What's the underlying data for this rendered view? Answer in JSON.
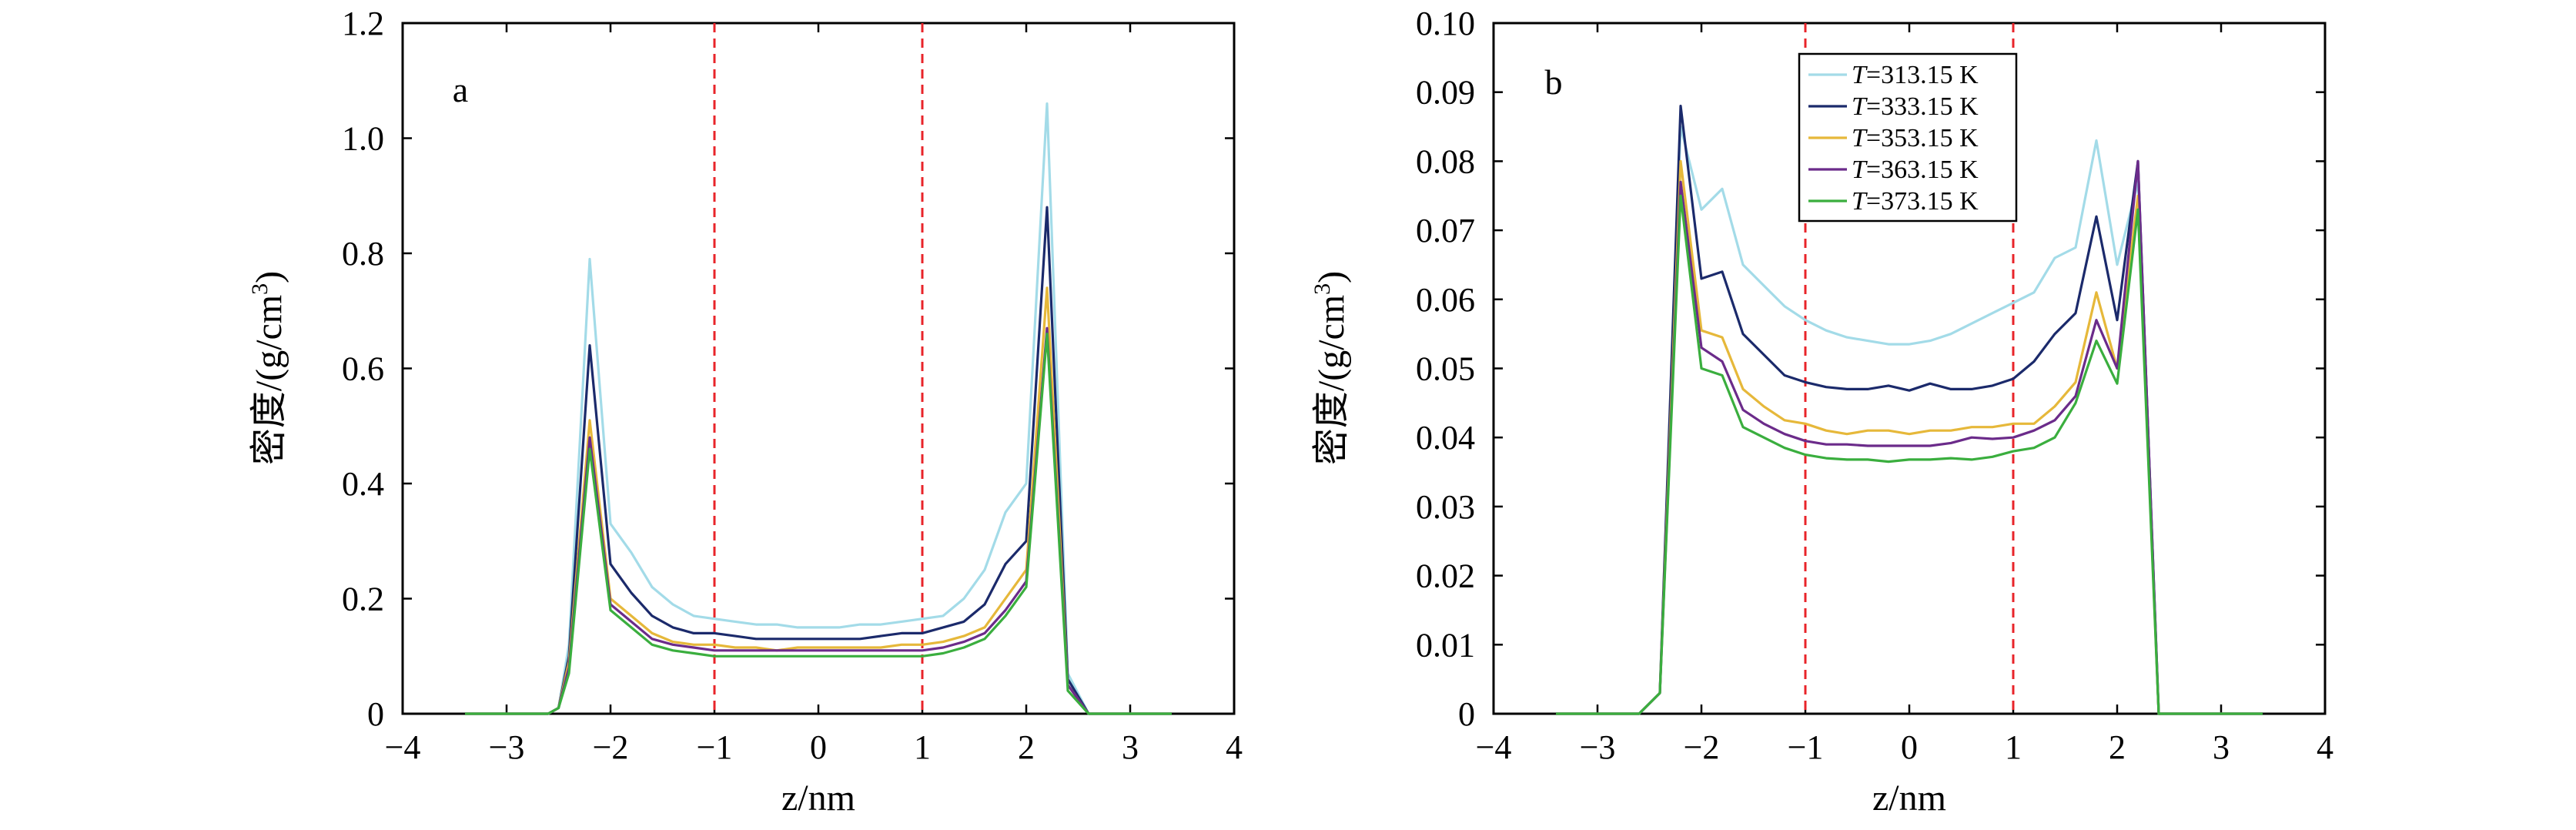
{
  "chart_data": [
    {
      "type": "line",
      "panel_label": "a",
      "xlabel": "z/nm",
      "ylabel": "密度/(g/cm³)",
      "ylabel_main": "密度/(g/cm",
      "ylabel_sup": "3",
      "ylabel_close": ")",
      "xlim": [
        -4,
        4
      ],
      "ylim": [
        0,
        1.2
      ],
      "xticks": [
        -4,
        -3,
        -2,
        -1,
        0,
        1,
        2,
        3,
        4
      ],
      "xtick_labels": [
        "−4",
        "−3",
        "−2",
        "−1",
        "0",
        "1",
        "2",
        "3",
        "4"
      ],
      "yticks": [
        0,
        0.2,
        0.4,
        0.6,
        0.8,
        1.0,
        1.2
      ],
      "ytick_labels": [
        "0",
        "0.2",
        "0.4",
        "0.6",
        "0.8",
        "1.0",
        "1.2"
      ],
      "vlines": [
        -1,
        1
      ],
      "vline_color": "#e8242a",
      "x": [
        -3.4,
        -3.2,
        -3.0,
        -2.8,
        -2.6,
        -2.5,
        -2.4,
        -2.2,
        -2.0,
        -1.8,
        -1.6,
        -1.4,
        -1.2,
        -1.0,
        -0.8,
        -0.6,
        -0.4,
        -0.2,
        0.0,
        0.2,
        0.4,
        0.6,
        0.8,
        1.0,
        1.2,
        1.4,
        1.6,
        1.8,
        2.0,
        2.2,
        2.4,
        2.6,
        2.8,
        3.0,
        3.2,
        3.4
      ],
      "series": [
        {
          "color": "#a3dbe8",
          "values": [
            0,
            0,
            0,
            0,
            0,
            0.01,
            0.12,
            0.79,
            0.33,
            0.28,
            0.22,
            0.19,
            0.17,
            0.165,
            0.16,
            0.155,
            0.155,
            0.15,
            0.15,
            0.15,
            0.155,
            0.155,
            0.16,
            0.165,
            0.17,
            0.2,
            0.25,
            0.35,
            0.4,
            1.06,
            0.07,
            0,
            0,
            0,
            0,
            0
          ]
        },
        {
          "color": "#1b2a6b",
          "values": [
            0,
            0,
            0,
            0,
            0,
            0.01,
            0.1,
            0.64,
            0.26,
            0.21,
            0.17,
            0.15,
            0.14,
            0.14,
            0.135,
            0.13,
            0.13,
            0.13,
            0.13,
            0.13,
            0.13,
            0.135,
            0.14,
            0.14,
            0.15,
            0.16,
            0.19,
            0.26,
            0.3,
            0.88,
            0.06,
            0,
            0,
            0,
            0,
            0
          ]
        },
        {
          "color": "#e6b83a",
          "values": [
            0,
            0,
            0,
            0,
            0,
            0.01,
            0.09,
            0.51,
            0.2,
            0.17,
            0.14,
            0.125,
            0.12,
            0.12,
            0.115,
            0.115,
            0.11,
            0.115,
            0.115,
            0.115,
            0.115,
            0.115,
            0.12,
            0.12,
            0.125,
            0.135,
            0.15,
            0.2,
            0.25,
            0.74,
            0.05,
            0,
            0,
            0,
            0,
            0
          ]
        },
        {
          "color": "#6b2b8a",
          "values": [
            0,
            0,
            0,
            0,
            0,
            0.01,
            0.08,
            0.48,
            0.19,
            0.16,
            0.13,
            0.12,
            0.115,
            0.11,
            0.11,
            0.11,
            0.11,
            0.11,
            0.11,
            0.11,
            0.11,
            0.11,
            0.11,
            0.11,
            0.115,
            0.125,
            0.14,
            0.18,
            0.23,
            0.67,
            0.05,
            0,
            0,
            0,
            0,
            0
          ]
        },
        {
          "color": "#3aae3e",
          "values": [
            0,
            0,
            0,
            0,
            0,
            0.01,
            0.07,
            0.46,
            0.18,
            0.15,
            0.12,
            0.11,
            0.105,
            0.1,
            0.1,
            0.1,
            0.1,
            0.1,
            0.1,
            0.1,
            0.1,
            0.1,
            0.1,
            0.1,
            0.105,
            0.115,
            0.13,
            0.17,
            0.22,
            0.66,
            0.04,
            0,
            0,
            0,
            0,
            0
          ]
        }
      ]
    },
    {
      "type": "line",
      "panel_label": "b",
      "xlabel": "z/nm",
      "ylabel": "密度/(g/cm³)",
      "ylabel_main": "密度/(g/cm",
      "ylabel_sup": "3",
      "ylabel_close": ")",
      "xlim": [
        -4,
        4
      ],
      "ylim": [
        0,
        0.1
      ],
      "xticks": [
        -4,
        -3,
        -2,
        -1,
        0,
        1,
        2,
        3,
        4
      ],
      "xtick_labels": [
        "−4",
        "−3",
        "−2",
        "−1",
        "0",
        "1",
        "2",
        "3",
        "4"
      ],
      "yticks": [
        0,
        0.01,
        0.02,
        0.03,
        0.04,
        0.05,
        0.06,
        0.07,
        0.08,
        0.09,
        0.1
      ],
      "ytick_labels": [
        "0",
        "0.01",
        "0.02",
        "0.03",
        "0.04",
        "0.05",
        "0.06",
        "0.07",
        "0.08",
        "0.09",
        "0.10"
      ],
      "vlines": [
        -1,
        1
      ],
      "vline_color": "#e8242a",
      "legend": {
        "placement": "top-center"
      },
      "x": [
        -3.4,
        -3.2,
        -3.0,
        -2.8,
        -2.6,
        -2.4,
        -2.2,
        -2.0,
        -1.8,
        -1.6,
        -1.4,
        -1.2,
        -1.0,
        -0.8,
        -0.6,
        -0.4,
        -0.2,
        0.0,
        0.2,
        0.4,
        0.6,
        0.8,
        1.0,
        1.2,
        1.4,
        1.6,
        1.8,
        2.0,
        2.2,
        2.4,
        2.6,
        2.8,
        3.0,
        3.2,
        3.4
      ],
      "series": [
        {
          "name_italic": "T",
          "name_rest": "=313.15 K",
          "color": "#a3dbe8",
          "values": [
            0,
            0,
            0,
            0,
            0,
            0.003,
            0.085,
            0.073,
            0.076,
            0.065,
            0.062,
            0.059,
            0.057,
            0.0555,
            0.0545,
            0.054,
            0.0535,
            0.0535,
            0.054,
            0.055,
            0.0565,
            0.058,
            0.0595,
            0.061,
            0.066,
            0.0675,
            0.083,
            0.065,
            0.077,
            0,
            0,
            0,
            0,
            0,
            0
          ]
        },
        {
          "name_italic": "T",
          "name_rest": "=333.15 K",
          "color": "#1b2a6b",
          "values": [
            0,
            0,
            0,
            0,
            0,
            0.003,
            0.088,
            0.063,
            0.064,
            0.055,
            0.052,
            0.049,
            0.048,
            0.0473,
            0.047,
            0.047,
            0.0475,
            0.0468,
            0.0478,
            0.047,
            0.047,
            0.0475,
            0.0485,
            0.051,
            0.055,
            0.058,
            0.072,
            0.057,
            0.08,
            0,
            0,
            0,
            0,
            0,
            0
          ]
        },
        {
          "name_italic": "T",
          "name_rest": "=353.15 K",
          "color": "#e6b83a",
          "values": [
            0,
            0,
            0,
            0,
            0,
            0.003,
            0.08,
            0.0555,
            0.0545,
            0.047,
            0.0445,
            0.0425,
            0.042,
            0.041,
            0.0405,
            0.041,
            0.041,
            0.0405,
            0.041,
            0.041,
            0.0415,
            0.0415,
            0.042,
            0.042,
            0.0445,
            0.048,
            0.061,
            0.05,
            0.075,
            0,
            0,
            0,
            0,
            0,
            0
          ]
        },
        {
          "name_italic": "T",
          "name_rest": "=363.15 K",
          "color": "#6b2b8a",
          "values": [
            0,
            0,
            0,
            0,
            0,
            0.003,
            0.077,
            0.053,
            0.051,
            0.044,
            0.042,
            0.0405,
            0.0395,
            0.039,
            0.039,
            0.0388,
            0.0388,
            0.0388,
            0.0388,
            0.0392,
            0.04,
            0.0398,
            0.04,
            0.041,
            0.0425,
            0.046,
            0.057,
            0.05,
            0.08,
            0,
            0,
            0,
            0,
            0,
            0
          ]
        },
        {
          "name_italic": "T",
          "name_rest": "=373.15 K",
          "color": "#3aae3e",
          "values": [
            0,
            0,
            0,
            0,
            0,
            0.003,
            0.075,
            0.05,
            0.049,
            0.0415,
            0.04,
            0.0385,
            0.0375,
            0.037,
            0.0368,
            0.0368,
            0.0365,
            0.0368,
            0.0368,
            0.037,
            0.0368,
            0.0372,
            0.038,
            0.0385,
            0.04,
            0.045,
            0.054,
            0.0478,
            0.073,
            0,
            0,
            0,
            0,
            0,
            0
          ]
        }
      ]
    }
  ]
}
